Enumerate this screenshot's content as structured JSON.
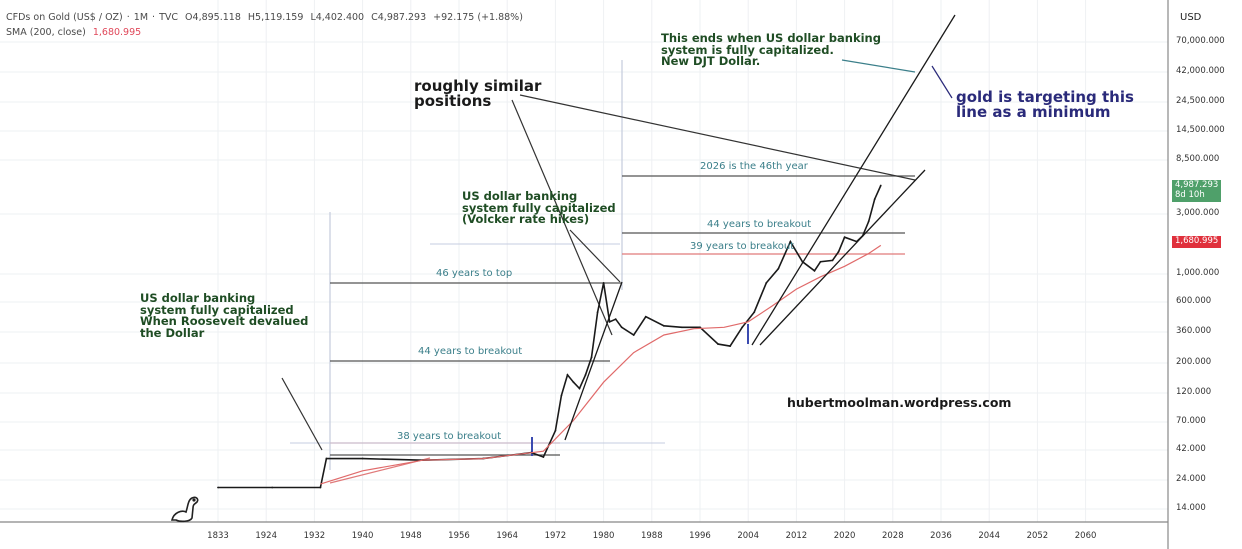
{
  "header": {
    "symbol": "CFDs on Gold (US$ / OZ)",
    "interval": "1M",
    "exchange": "TVC",
    "open": "O4,895.118",
    "high": "H5,119.159",
    "low": "L4,402.400",
    "close": "C4,987.293",
    "change": "+92.175 (+1.88%)",
    "indicator": "SMA (200, close)",
    "indicator_value": "1,680.995"
  },
  "colors": {
    "price_line": "#1a1a1a",
    "sma_line": "#e06a6a",
    "annotation_green": "#1f4d24",
    "annotation_blue": "#2a2a7a",
    "label_teal": "#3b7f8a",
    "current_price_badge": "#4fa06a",
    "sma_badge": "#e0303c"
  },
  "chart_data": {
    "type": "line",
    "title": "CFDs on Gold (US$ / OZ) · 1M · TVC",
    "xlabel": "",
    "ylabel": "USD",
    "y_scale": "log",
    "currency_label": "USD",
    "x_ticks": [
      "1833",
      "1924",
      "1932",
      "1940",
      "1948",
      "1956",
      "1964",
      "1972",
      "1980",
      "1988",
      "1996",
      "2004",
      "2012",
      "2020",
      "2028",
      "2036",
      "2044",
      "2052",
      "2060"
    ],
    "y_ticks": [
      "70,000.000",
      "42,000.000",
      "24,500.000",
      "14,500.000",
      "8,500.000",
      "3,000.000",
      "1,000.000",
      "600.000",
      "360.000",
      "200.000",
      "120.000",
      "70.000",
      "42.000",
      "24.000",
      "14.000"
    ],
    "current_price": {
      "value": "4,987.293",
      "countdown": "8d 10h"
    },
    "sma_price": {
      "value": "1,680.995"
    },
    "series": [
      {
        "name": "Gold price",
        "x": [
          1915,
          1925,
          1933,
          1934,
          1940,
          1950,
          1960,
          1968,
          1970,
          1972,
          1973,
          1974,
          1975,
          1976,
          1977,
          1978,
          1979,
          1980,
          1981,
          1982,
          1983,
          1985,
          1987,
          1990,
          1993,
          1996,
          1999,
          2001,
          2003,
          2005,
          2007,
          2009,
          2011,
          2013,
          2015,
          2016,
          2018,
          2019,
          2020,
          2022,
          2023,
          2024,
          2025,
          2026
        ],
        "values": [
          20.7,
          20.7,
          20.7,
          35,
          35,
          34,
          35,
          39,
          36,
          58,
          110,
          160,
          140,
          125,
          160,
          220,
          500,
          850,
          420,
          440,
          380,
          330,
          460,
          390,
          380,
          380,
          280,
          270,
          380,
          500,
          850,
          1100,
          1800,
          1250,
          1060,
          1250,
          1280,
          1500,
          1950,
          1800,
          2000,
          2600,
          3900,
          4987
        ]
      },
      {
        "name": "SMA (200, close)",
        "x": [
          1933,
          1940,
          1950,
          1960,
          1970,
          1975,
          1980,
          1985,
          1990,
          1995,
          2000,
          2004,
          2008,
          2012,
          2016,
          2020,
          2024,
          2026
        ],
        "values": [
          22,
          28,
          34,
          35,
          40,
          70,
          140,
          240,
          330,
          370,
          380,
          420,
          560,
          760,
          950,
          1150,
          1450,
          1681
        ]
      }
    ],
    "annotations": [
      {
        "text": "This ends when US dollar banking\nsystem is fully capitalized.\nNew DJT Dollar."
      },
      {
        "text": "gold is targeting this\nline as a minimum"
      },
      {
        "text": "roughly similar\npositions"
      },
      {
        "text": "US dollar banking\nsystem fully capitalized\n(Volcker rate hikes)"
      },
      {
        "text": "US dollar banking\nsystem fully capitalized\nWhen Roosevelt devalued\nthe Dollar"
      },
      {
        "text": "2026 is the 46th year"
      },
      {
        "text": "44 years to breakout"
      },
      {
        "text": "39 years to breakout"
      },
      {
        "text": "46 years to top"
      },
      {
        "text": "44 years to breakout"
      },
      {
        "text": "38 years to breakout"
      },
      {
        "text": "hubertmoolman.wordpress.com"
      }
    ]
  }
}
